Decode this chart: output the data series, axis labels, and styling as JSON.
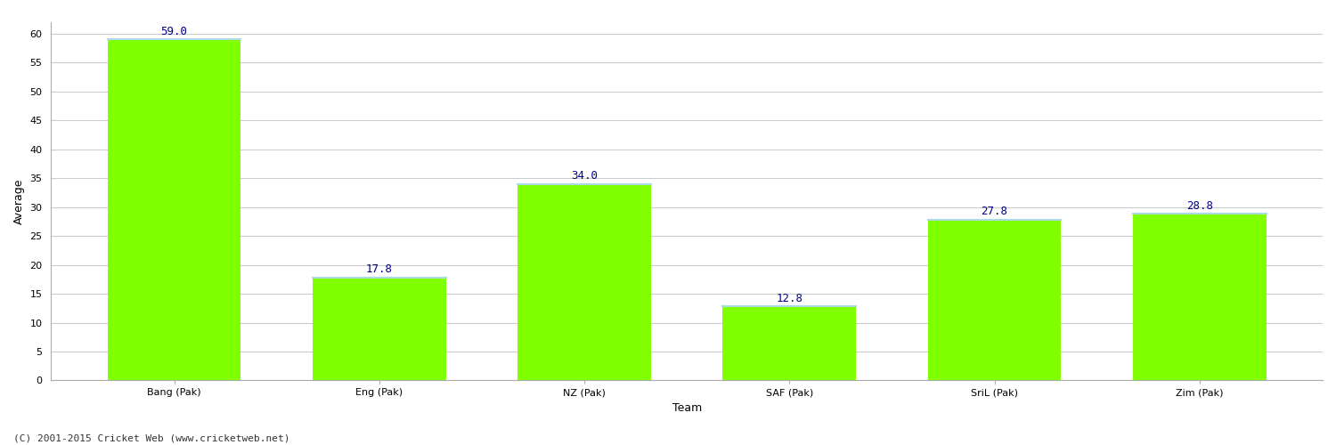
{
  "categories": [
    "Bang (Pak)",
    "Eng (Pak)",
    "NZ (Pak)",
    "SAF (Pak)",
    "SriL (Pak)",
    "Zim (Pak)"
  ],
  "values": [
    59.0,
    17.8,
    34.0,
    12.8,
    27.8,
    28.8
  ],
  "bar_color": "#7fff00",
  "bar_edge_color": "#7fff00",
  "bar_top_edge_color": "#add8e6",
  "value_label_color": "#00008b",
  "xlabel": "Team",
  "ylabel": "Average",
  "ylim": [
    0,
    62
  ],
  "yticks": [
    0,
    5,
    10,
    15,
    20,
    25,
    30,
    35,
    40,
    45,
    50,
    55,
    60
  ],
  "grid_color": "#cccccc",
  "background_color": "#ffffff",
  "value_fontsize": 9,
  "axis_label_fontsize": 9,
  "tick_label_fontsize": 8,
  "footer_text": "(C) 2001-2015 Cricket Web (www.cricketweb.net)",
  "footer_fontsize": 8,
  "footer_color": "#333333",
  "bar_width": 0.65
}
